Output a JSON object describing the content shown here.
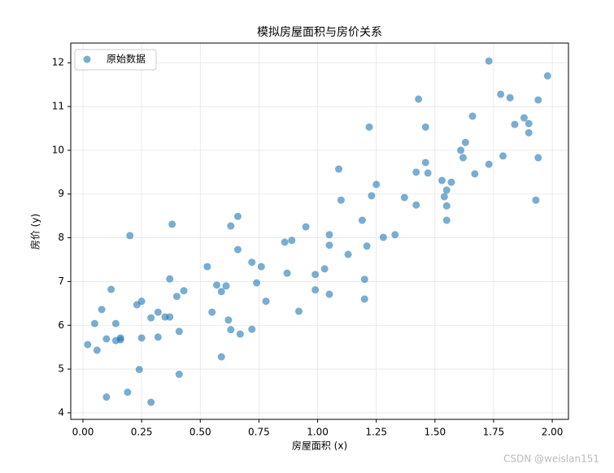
{
  "chart_data": {
    "type": "scatter",
    "title": "模拟房屋面积与房价关系",
    "x_label": "房屋面积 (x)",
    "y_label": "房价 (y)",
    "x": [
      0.02,
      0.05,
      0.06,
      0.08,
      0.1,
      0.1,
      0.12,
      0.14,
      0.14,
      0.16,
      0.16,
      0.19,
      0.2,
      0.23,
      0.24,
      0.25,
      0.25,
      0.29,
      0.29,
      0.32,
      0.32,
      0.35,
      0.37,
      0.37,
      0.38,
      0.4,
      0.41,
      0.41,
      0.43,
      0.53,
      0.55,
      0.57,
      0.59,
      0.59,
      0.61,
      0.62,
      0.63,
      0.63,
      0.66,
      0.66,
      0.67,
      0.72,
      0.72,
      0.74,
      0.76,
      0.78,
      0.86,
      0.87,
      0.89,
      0.92,
      0.95,
      0.99,
      0.99,
      1.03,
      1.05,
      1.05,
      1.05,
      1.09,
      1.1,
      1.13,
      1.19,
      1.2,
      1.2,
      1.21,
      1.22,
      1.23,
      1.25,
      1.28,
      1.33,
      1.37,
      1.42,
      1.42,
      1.43,
      1.46,
      1.46,
      1.47,
      1.53,
      1.54,
      1.55,
      1.55,
      1.55,
      1.57,
      1.61,
      1.62,
      1.63,
      1.66,
      1.67,
      1.73,
      1.73,
      1.78,
      1.79,
      1.82,
      1.84,
      1.88,
      1.9,
      1.9,
      1.93,
      1.94,
      1.94,
      1.98
    ],
    "series": [
      {
        "name": "原始数据",
        "color": "#1f77b4",
        "values": [
          5.56,
          6.04,
          5.43,
          6.36,
          4.36,
          5.69,
          6.82,
          6.04,
          5.65,
          5.71,
          5.67,
          4.47,
          8.05,
          6.47,
          4.99,
          6.55,
          5.71,
          6.17,
          4.24,
          6.3,
          5.73,
          6.19,
          6.19,
          7.06,
          8.31,
          6.66,
          4.88,
          5.86,
          6.79,
          7.34,
          6.3,
          6.92,
          5.28,
          6.77,
          6.9,
          6.12,
          8.27,
          5.9,
          7.73,
          8.49,
          5.8,
          5.91,
          7.44,
          6.97,
          7.34,
          6.55,
          7.9,
          7.19,
          7.94,
          6.32,
          8.25,
          7.16,
          6.81,
          7.29,
          6.71,
          8.07,
          7.83,
          9.57,
          8.86,
          7.62,
          8.4,
          7.05,
          6.6,
          7.81,
          10.53,
          8.96,
          9.22,
          8.01,
          8.07,
          8.92,
          9.5,
          8.75,
          11.17,
          10.53,
          9.72,
          9.48,
          9.31,
          8.94,
          8.73,
          8.4,
          9.09,
          9.27,
          10.0,
          9.83,
          10.18,
          10.78,
          9.46,
          12.04,
          9.68,
          11.28,
          9.87,
          11.2,
          10.59,
          10.74,
          10.61,
          10.4,
          8.86,
          9.83,
          11.15,
          11.7
        ]
      }
    ],
    "xlim": [
      -0.052,
      2.069
    ],
    "ylim": [
      3.85,
      12.45
    ],
    "xticks": [
      {
        "value": 0,
        "label": "0.00"
      },
      {
        "value": 0.25,
        "label": "0.25"
      },
      {
        "value": 0.5,
        "label": "0.50"
      },
      {
        "value": 0.75,
        "label": "0.75"
      },
      {
        "value": 1,
        "label": "1.00"
      },
      {
        "value": 1.25,
        "label": "1.25"
      },
      {
        "value": 1.5,
        "label": "1.50"
      },
      {
        "value": 1.75,
        "label": "1.75"
      },
      {
        "value": 2,
        "label": "2.00"
      }
    ],
    "yticks": [
      4,
      5,
      6,
      7,
      8,
      9,
      10,
      11,
      12
    ],
    "grid": true,
    "legend": "upper left"
  },
  "watermark": "CSDN @weislan151"
}
